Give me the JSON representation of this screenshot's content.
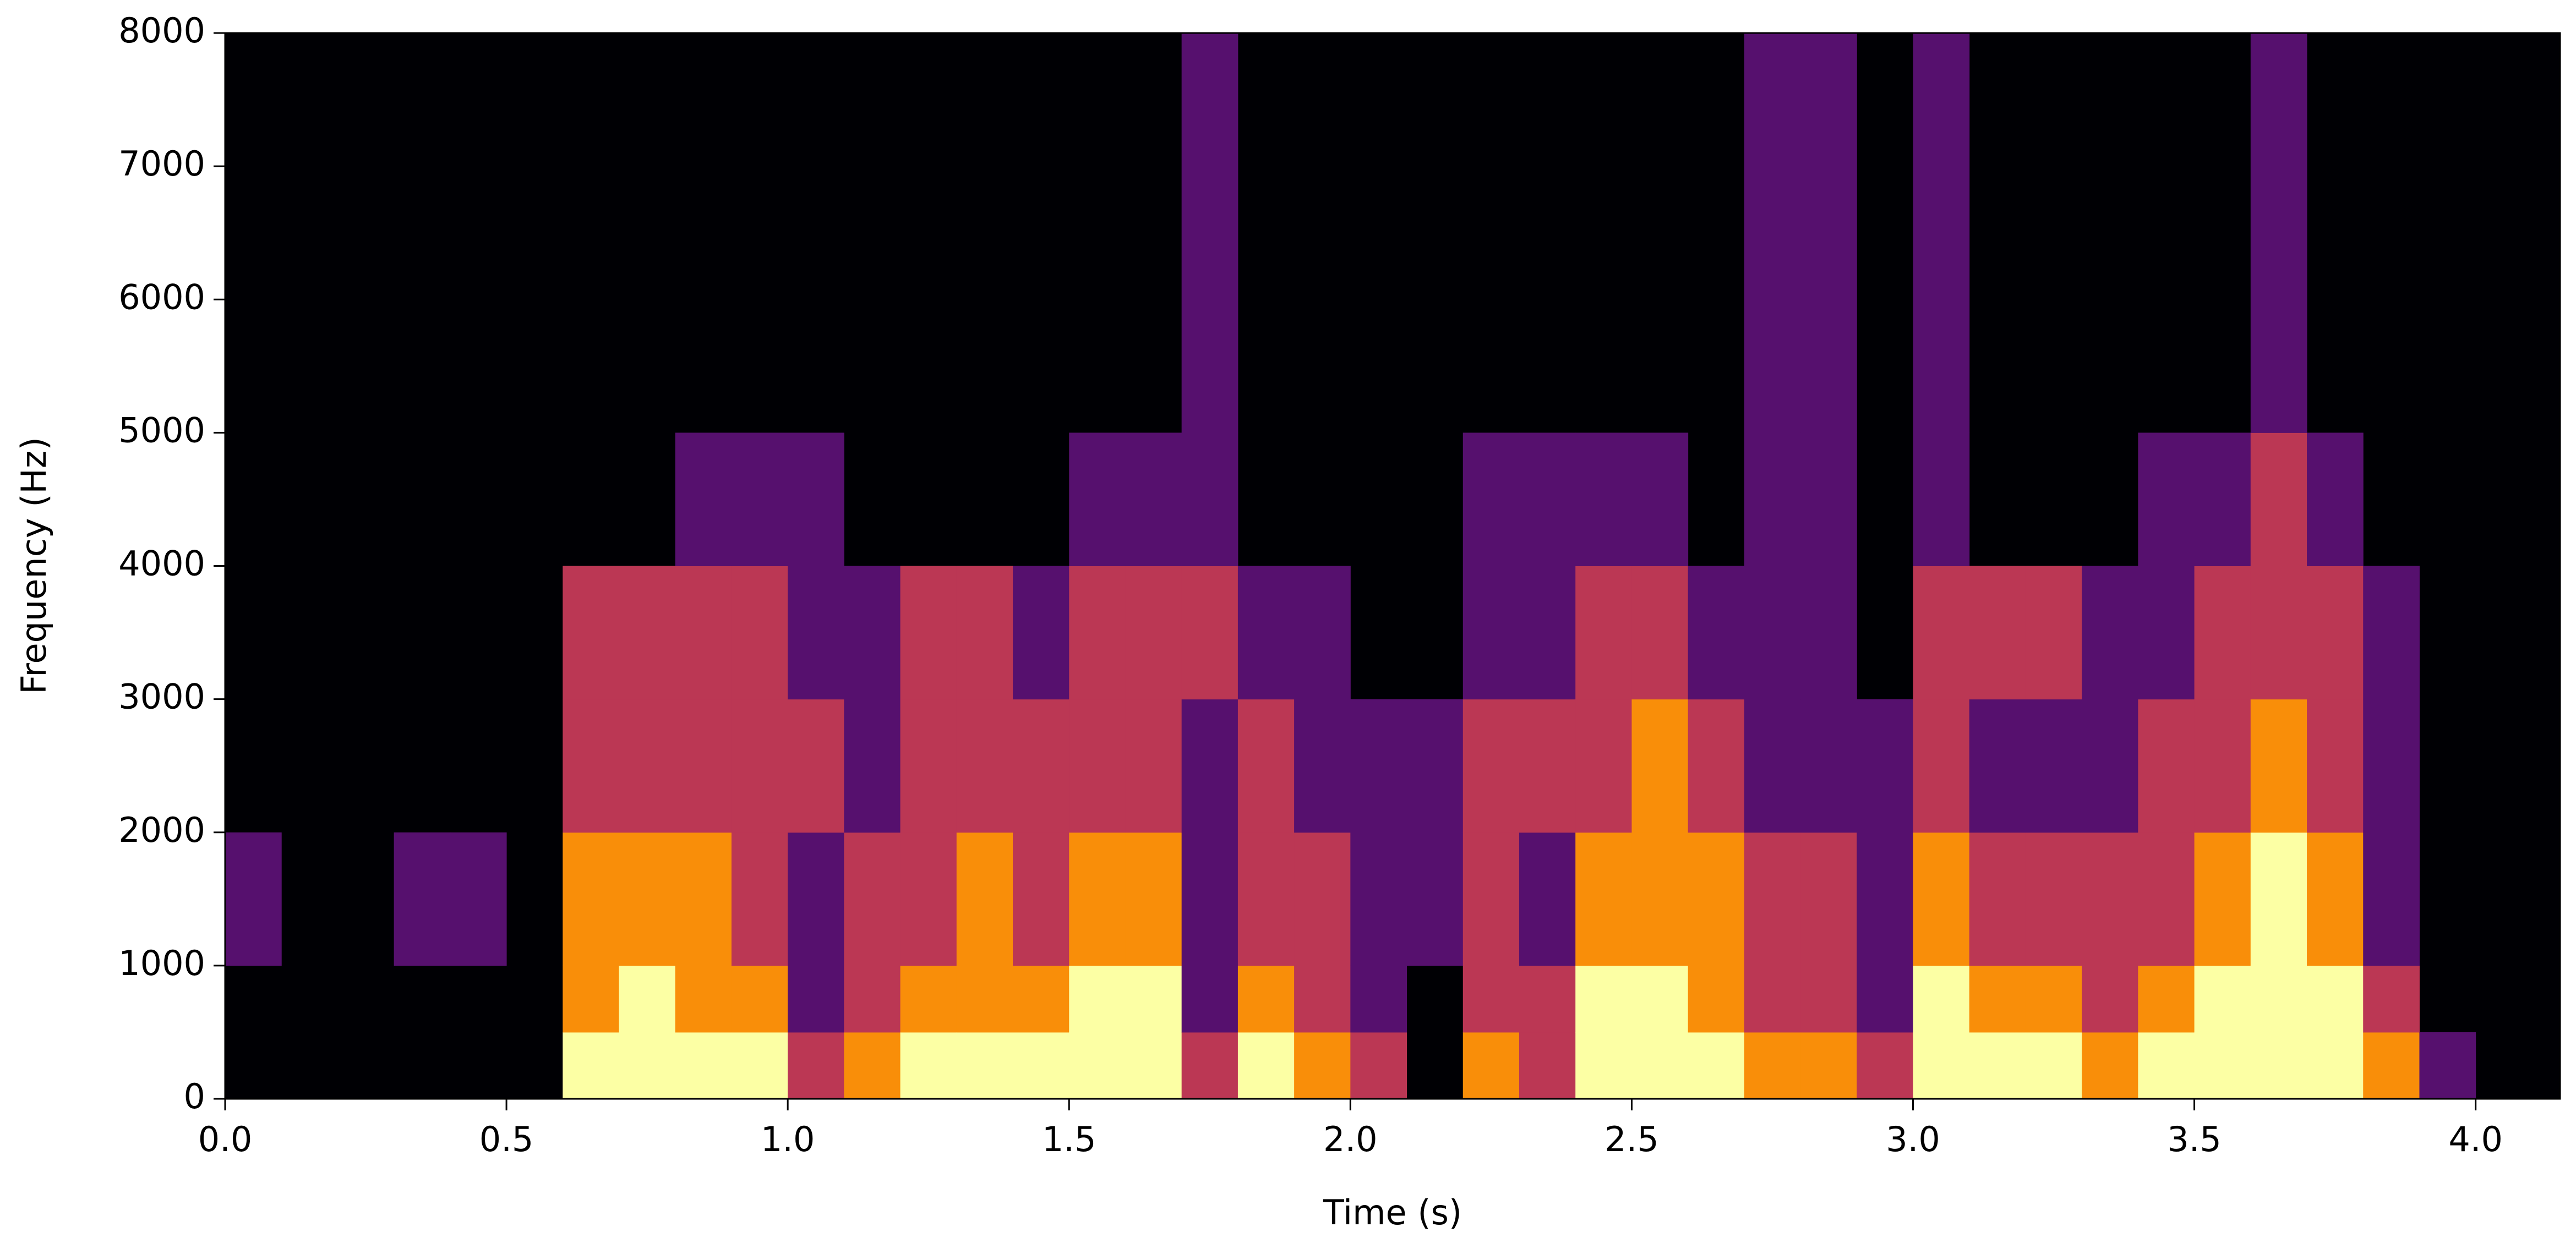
{
  "chart_data": {
    "type": "spectrogram",
    "xlabel": "Time (s)",
    "ylabel": "Frequency (Hz)",
    "xlim": [
      0,
      4.15
    ],
    "ylim": [
      0,
      8000
    ],
    "xticks": [
      {
        "value": 0,
        "label": "0.0"
      },
      0.5,
      {
        "value": 1,
        "label": "1.0"
      },
      1.5,
      {
        "value": 2,
        "label": "2.0"
      },
      2.5,
      {
        "value": 3,
        "label": "3.0"
      },
      3.5,
      {
        "value": 4,
        "label": "4.0"
      }
    ],
    "yticks": [
      0,
      1000,
      2000,
      3000,
      4000,
      5000,
      6000,
      7000,
      8000
    ],
    "colormap": [
      "#000004",
      "#56106e",
      "#bb3754",
      "#f98e09",
      "#fcffa4"
    ],
    "time_bins": [
      0,
      0.1,
      0.2,
      0.3,
      0.4,
      0.5,
      0.6,
      0.7,
      0.8,
      0.9,
      1.0,
      1.1,
      1.2,
      1.3,
      1.4,
      1.5,
      1.6,
      1.7,
      1.8,
      1.9,
      2.0,
      2.1,
      2.2,
      2.3,
      2.4,
      2.5,
      2.6,
      2.7,
      2.8,
      2.9,
      3.0,
      3.1,
      3.2,
      3.3,
      3.4,
      3.5,
      3.6,
      3.7,
      3.8,
      3.9,
      4.0,
      4.1,
      4.2
    ],
    "freq_bins": [
      0,
      500,
      1000,
      2000,
      3000,
      4000,
      5000,
      8000
    ],
    "values": [
      [
        0,
        0,
        1,
        0,
        0,
        0,
        0
      ],
      [
        0,
        0,
        0,
        0,
        0,
        0,
        0
      ],
      [
        0,
        0,
        0,
        0,
        0,
        0,
        0
      ],
      [
        0,
        0,
        1,
        0,
        0,
        0,
        0
      ],
      [
        0,
        0,
        1,
        0,
        0,
        0,
        0
      ],
      [
        0,
        0,
        0,
        0,
        0,
        0,
        0
      ],
      [
        4,
        3,
        3,
        2,
        2,
        0,
        0
      ],
      [
        4,
        4,
        3,
        2,
        2,
        0,
        0
      ],
      [
        4,
        3,
        3,
        2,
        2,
        1,
        0
      ],
      [
        4,
        3,
        2,
        2,
        2,
        1,
        0
      ],
      [
        2,
        1,
        1,
        2,
        1,
        1,
        0
      ],
      [
        3,
        2,
        2,
        1,
        1,
        0,
        0
      ],
      [
        4,
        3,
        2,
        2,
        2,
        0,
        0
      ],
      [
        4,
        3,
        3,
        2,
        2,
        0,
        0
      ],
      [
        4,
        3,
        2,
        2,
        1,
        0,
        0
      ],
      [
        4,
        4,
        3,
        2,
        2,
        1,
        0
      ],
      [
        4,
        4,
        3,
        2,
        2,
        1,
        0
      ],
      [
        2,
        1,
        1,
        1,
        2,
        1,
        1
      ],
      [
        4,
        3,
        2,
        2,
        1,
        0,
        0
      ],
      [
        3,
        2,
        2,
        1,
        1,
        0,
        0
      ],
      [
        2,
        1,
        1,
        1,
        0,
        0,
        0
      ],
      [
        0,
        0,
        1,
        1,
        0,
        0,
        0
      ],
      [
        3,
        2,
        2,
        2,
        1,
        1,
        0
      ],
      [
        2,
        2,
        1,
        2,
        1,
        1,
        0
      ],
      [
        4,
        4,
        3,
        2,
        2,
        1,
        0
      ],
      [
        4,
        4,
        3,
        3,
        2,
        1,
        0
      ],
      [
        4,
        3,
        3,
        2,
        1,
        0,
        0
      ],
      [
        3,
        2,
        2,
        1,
        1,
        1,
        1
      ],
      [
        3,
        2,
        2,
        1,
        1,
        1,
        1
      ],
      [
        2,
        1,
        1,
        1,
        0,
        0,
        0
      ],
      [
        4,
        4,
        3,
        2,
        2,
        1,
        1
      ],
      [
        4,
        3,
        2,
        1,
        2,
        0,
        0
      ],
      [
        4,
        3,
        2,
        1,
        2,
        0,
        0
      ],
      [
        3,
        2,
        2,
        1,
        1,
        0,
        0
      ],
      [
        4,
        3,
        2,
        2,
        1,
        1,
        0
      ],
      [
        4,
        4,
        3,
        2,
        2,
        1,
        0
      ],
      [
        4,
        4,
        4,
        3,
        2,
        2,
        1
      ],
      [
        4,
        4,
        3,
        2,
        2,
        1,
        0
      ],
      [
        3,
        2,
        1,
        1,
        1,
        0,
        0
      ],
      [
        1,
        0,
        0,
        0,
        0,
        0,
        0
      ],
      [
        0,
        0,
        0,
        0,
        0,
        0,
        0
      ],
      [
        0,
        0,
        0,
        0,
        0,
        0,
        0
      ]
    ]
  }
}
